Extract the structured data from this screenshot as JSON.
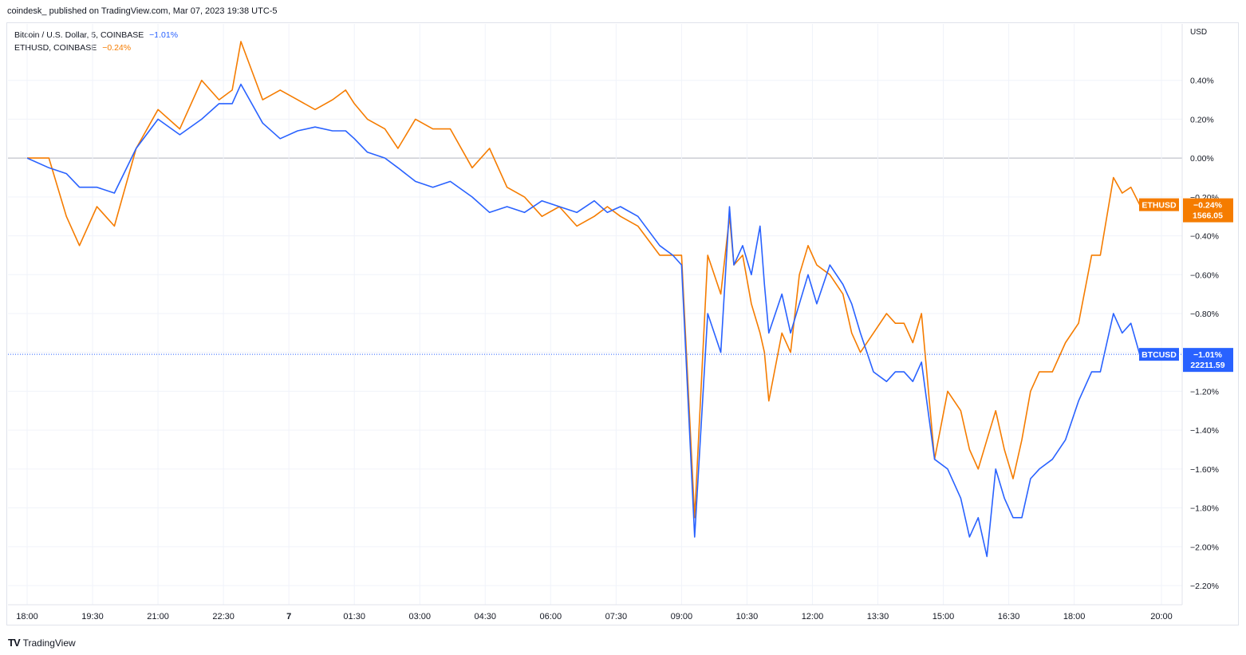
{
  "header": "coindesk_ published on TradingView.com, Mar 07, 2023 19:38 UTC-5",
  "footer": {
    "brand": "TradingView",
    "logo": "TV"
  },
  "legend": [
    {
      "label": "Bitcoin / U.S. Dollar, 5, COINBASE",
      "value": "−1.01%",
      "color": "#2962ff"
    },
    {
      "label": "ETHUSD, COINBASE",
      "value": "−0.24%",
      "color": "#f57c00"
    }
  ],
  "chart_data": {
    "type": "line",
    "unit": "USD",
    "ylim": [
      -2.3,
      0.62
    ],
    "y_ticks": [
      0.4,
      0.2,
      0.0,
      -0.2,
      -0.4,
      -0.6,
      -0.8,
      -1.0,
      -1.2,
      -1.4,
      -1.6,
      -1.8,
      -2.0,
      -2.2
    ],
    "y_tick_labels": [
      "0.40%",
      "0.20%",
      "0.00%",
      "−0.20%",
      "−0.40%",
      "−0.60%",
      "−0.80%",
      "−1.00%",
      "−1.20%",
      "−1.40%",
      "−1.60%",
      "−1.80%",
      "−2.00%",
      "−2.20%"
    ],
    "x_ticks": [
      "18:00",
      "19:30",
      "21:00",
      "22:30",
      "7",
      "01:30",
      "03:00",
      "04:30",
      "06:00",
      "07:30",
      "09:00",
      "10:30",
      "12:00",
      "13:30",
      "15:00",
      "16:30",
      "18:00",
      "20:00"
    ],
    "x_range_hours": [
      -0.25,
      26.1
    ],
    "grid": true,
    "series": [
      {
        "name": "BTCUSD",
        "color": "#2962ff",
        "last_label": "−1.01%",
        "last_price": "22211.59",
        "x": [
          0,
          0.5,
          0.9,
          1.2,
          1.6,
          2.0,
          2.5,
          3.0,
          3.5,
          4.0,
          4.4,
          4.7,
          4.9,
          5.4,
          5.8,
          6.2,
          6.6,
          7.0,
          7.3,
          7.5,
          7.8,
          8.2,
          8.5,
          8.9,
          9.3,
          9.7,
          10.2,
          10.6,
          11.0,
          11.4,
          11.8,
          12.2,
          12.6,
          13.0,
          13.3,
          13.6,
          14.0,
          14.5,
          14.8,
          15.0,
          15.3,
          15.6,
          15.9,
          16.1,
          16.2,
          16.4,
          16.6,
          16.8,
          16.9,
          17.0,
          17.3,
          17.5,
          17.7,
          17.9,
          18.1,
          18.4,
          18.7,
          18.9,
          19.1,
          19.4,
          19.7,
          19.9,
          20.1,
          20.3,
          20.5,
          20.8,
          21.1,
          21.4,
          21.6,
          21.8,
          22.0,
          22.2,
          22.4,
          22.6,
          22.8,
          23.0,
          23.2,
          23.5,
          23.8,
          24.1,
          24.4,
          24.6,
          24.9,
          25.1,
          25.3,
          25.5
        ],
        "y": [
          0.0,
          -0.05,
          -0.08,
          -0.15,
          -0.15,
          -0.18,
          0.05,
          0.2,
          0.12,
          0.2,
          0.28,
          0.28,
          0.38,
          0.18,
          0.1,
          0.14,
          0.16,
          0.14,
          0.14,
          0.1,
          0.03,
          0.0,
          -0.05,
          -0.12,
          -0.15,
          -0.12,
          -0.2,
          -0.28,
          -0.25,
          -0.28,
          -0.22,
          -0.25,
          -0.28,
          -0.22,
          -0.28,
          -0.25,
          -0.3,
          -0.45,
          -0.5,
          -0.55,
          -1.95,
          -0.8,
          -1.0,
          -0.25,
          -0.55,
          -0.45,
          -0.6,
          -0.35,
          -0.65,
          -0.9,
          -0.7,
          -0.9,
          -0.75,
          -0.6,
          -0.75,
          -0.55,
          -0.65,
          -0.75,
          -0.9,
          -1.1,
          -1.15,
          -1.1,
          -1.1,
          -1.15,
          -1.05,
          -1.55,
          -1.6,
          -1.75,
          -1.95,
          -1.85,
          -2.05,
          -1.6,
          -1.75,
          -1.85,
          -1.85,
          -1.65,
          -1.6,
          -1.55,
          -1.45,
          -1.25,
          -1.1,
          -1.1,
          -0.8,
          -0.9,
          -0.85,
          -1.01
        ]
      },
      {
        "name": "ETHUSD",
        "color": "#f57c00",
        "last_label": "−0.24%",
        "last_price": "1566.05",
        "x": [
          0,
          0.5,
          0.9,
          1.2,
          1.6,
          2.0,
          2.5,
          3.0,
          3.5,
          4.0,
          4.4,
          4.7,
          4.9,
          5.4,
          5.8,
          6.2,
          6.6,
          7.0,
          7.3,
          7.5,
          7.8,
          8.2,
          8.5,
          8.9,
          9.3,
          9.7,
          10.2,
          10.6,
          11.0,
          11.4,
          11.8,
          12.2,
          12.6,
          13.0,
          13.3,
          13.6,
          14.0,
          14.5,
          14.8,
          15.0,
          15.3,
          15.6,
          15.9,
          16.1,
          16.2,
          16.4,
          16.6,
          16.8,
          16.9,
          17.0,
          17.3,
          17.5,
          17.7,
          17.9,
          18.1,
          18.4,
          18.7,
          18.9,
          19.1,
          19.4,
          19.7,
          19.9,
          20.1,
          20.3,
          20.5,
          20.8,
          21.1,
          21.4,
          21.6,
          21.8,
          22.0,
          22.2,
          22.4,
          22.6,
          22.8,
          23.0,
          23.2,
          23.5,
          23.8,
          24.1,
          24.4,
          24.6,
          24.9,
          25.1,
          25.3,
          25.5
        ],
        "y": [
          0.0,
          0.0,
          -0.3,
          -0.45,
          -0.25,
          -0.35,
          0.05,
          0.25,
          0.15,
          0.4,
          0.3,
          0.35,
          0.6,
          0.3,
          0.35,
          0.3,
          0.25,
          0.3,
          0.35,
          0.28,
          0.2,
          0.15,
          0.05,
          0.2,
          0.15,
          0.15,
          -0.05,
          0.05,
          -0.15,
          -0.2,
          -0.3,
          -0.25,
          -0.35,
          -0.3,
          -0.25,
          -0.3,
          -0.35,
          -0.5,
          -0.5,
          -0.5,
          -1.85,
          -0.5,
          -0.7,
          -0.3,
          -0.55,
          -0.5,
          -0.75,
          -0.9,
          -1.0,
          -1.25,
          -0.9,
          -1.0,
          -0.6,
          -0.45,
          -0.55,
          -0.6,
          -0.7,
          -0.9,
          -1.0,
          -0.9,
          -0.8,
          -0.85,
          -0.85,
          -0.95,
          -0.8,
          -1.55,
          -1.2,
          -1.3,
          -1.5,
          -1.6,
          -1.45,
          -1.3,
          -1.5,
          -1.65,
          -1.45,
          -1.2,
          -1.1,
          -1.1,
          -0.95,
          -0.85,
          -0.5,
          -0.5,
          -0.1,
          -0.18,
          -0.15,
          -0.24
        ]
      }
    ]
  }
}
